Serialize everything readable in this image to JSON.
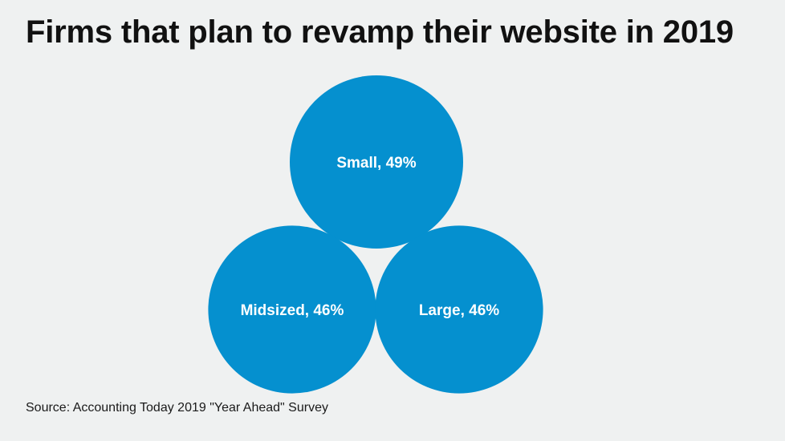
{
  "chart_data": {
    "type": "bubble",
    "title": "Firms that plan to revamp their website in 2019",
    "source": "Source: Accounting Today 2019 \"Year Ahead\" Survey",
    "bubble_color": "#0590cf",
    "label_color": "#ffffff",
    "background_color": "#eff1f1",
    "points": [
      {
        "category": "Small",
        "value": 49,
        "label": "Small, 49%"
      },
      {
        "category": "Midsized",
        "value": 46,
        "label": "Midsized, 46%"
      },
      {
        "category": "Large",
        "value": 46,
        "label": "Large, 46%"
      }
    ]
  }
}
